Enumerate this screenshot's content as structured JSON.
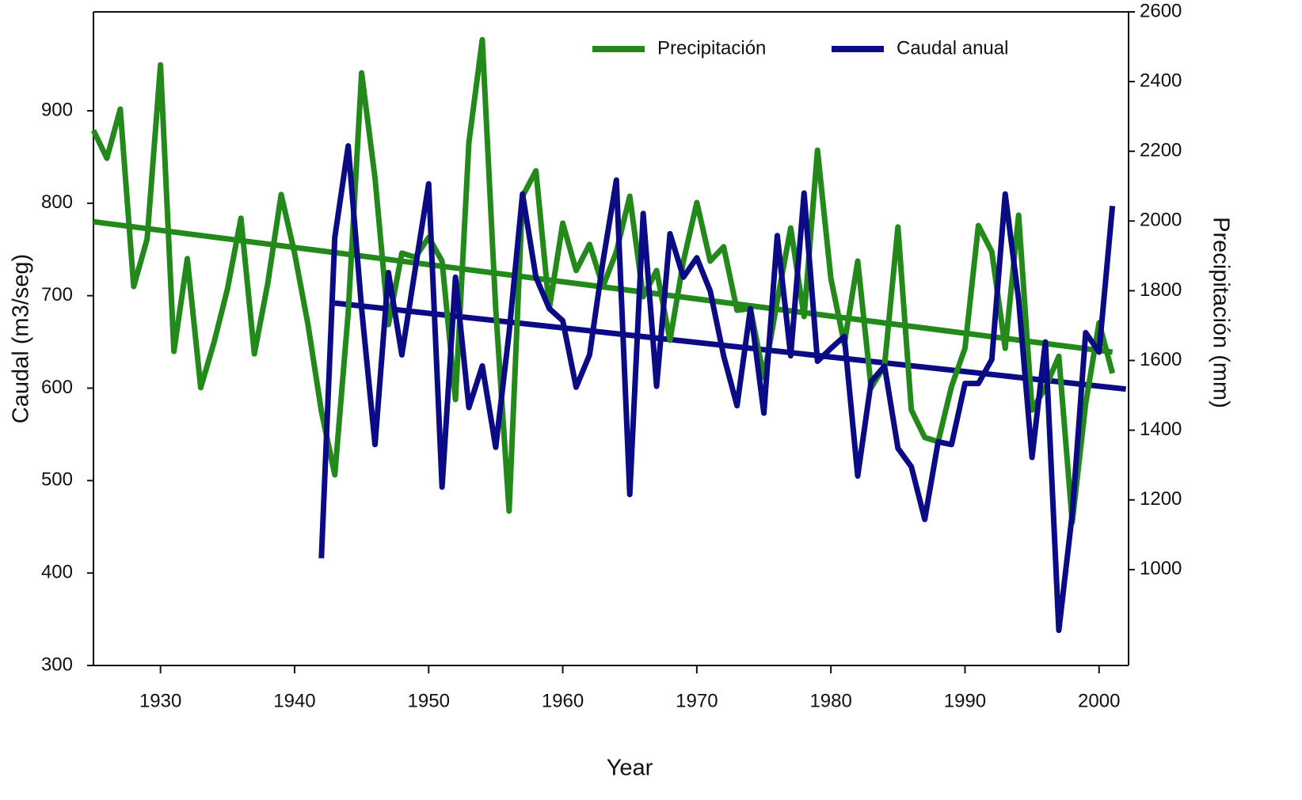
{
  "chart_data": {
    "type": "line",
    "x_label": "Year",
    "y_label": "Caudal  (m3/seg)",
    "y2_label": "Precipitación (mm)",
    "legend": "top-right",
    "xlim": [
      1925,
      2002.2
    ],
    "xticks": [
      1930,
      1940,
      1950,
      1960,
      1970,
      1980,
      1990,
      2000
    ],
    "ylim": [
      300,
      1007
    ],
    "yticks": [
      300,
      400,
      500,
      600,
      700,
      800,
      900
    ],
    "y2lim": [
      725,
      2600
    ],
    "y2ticks": [
      1000,
      1200,
      1400,
      1600,
      1800,
      2000,
      2200,
      2400,
      2600
    ],
    "series": [
      {
        "name": "Precipitación",
        "color": "#23891b",
        "axis": "y2",
        "x": [
          1925,
          1926,
          1927,
          1928,
          1929,
          1930,
          1931,
          1932,
          1933,
          1934,
          1935,
          1936,
          1937,
          1938,
          1939,
          1940,
          1941,
          1942,
          1943,
          1944,
          1945,
          1946,
          1947,
          1948,
          1949,
          1950,
          1951,
          1952,
          1953,
          1954,
          1955,
          1956,
          1957,
          1958,
          1959,
          1960,
          1961,
          1962,
          1963,
          1964,
          1965,
          1966,
          1967,
          1968,
          1969,
          1970,
          1971,
          1972,
          1973,
          1974,
          1975,
          1976,
          1977,
          1978,
          1979,
          1980,
          1981,
          1982,
          1983,
          1984,
          1985,
          1986,
          1987,
          1988,
          1989,
          1990,
          1991,
          1992,
          1993,
          1994,
          1995,
          1996,
          1997,
          1998,
          1999,
          2000,
          2001
        ],
        "values": [
          2260,
          2180,
          2321,
          1812,
          1948,
          2448,
          1626,
          1892,
          1522,
          1653,
          1806,
          2008,
          1619,
          1821,
          2076,
          1908,
          1703,
          1454,
          1272,
          1737,
          2425,
          2123,
          1703,
          1908,
          1896,
          1953,
          1885,
          1488,
          2225,
          2520,
          1749,
          1168,
          2071,
          2144,
          1749,
          1994,
          1858,
          1933,
          1812,
          1912,
          2071,
          1783,
          1858,
          1658,
          1885,
          2053,
          1885,
          1926,
          1744,
          1749,
          1551,
          1771,
          1980,
          1726,
          2203,
          1835,
          1647,
          1885,
          1522,
          1585,
          1983,
          1458,
          1379,
          1367,
          1526,
          1635,
          1987,
          1912,
          1635,
          2017,
          1458,
          1522,
          1612,
          1136,
          1476,
          1708,
          1563
        ]
      },
      {
        "name": "Caudal anual",
        "color": "#0b0b85",
        "axis": "y",
        "x": [
          1942,
          1943,
          1944,
          1945,
          1946,
          1947,
          1948,
          1949,
          1950,
          1951,
          1952,
          1953,
          1954,
          1955,
          1956,
          1957,
          1958,
          1959,
          1960,
          1961,
          1962,
          1963,
          1964,
          1965,
          1966,
          1967,
          1968,
          1969,
          1970,
          1971,
          1972,
          1973,
          1974,
          1975,
          1976,
          1977,
          1978,
          1979,
          1980,
          1981,
          1982,
          1983,
          1984,
          1985,
          1986,
          1987,
          1988,
          1989,
          1990,
          1991,
          1992,
          1993,
          1994,
          1995,
          1996,
          1997,
          1998,
          1999,
          2000,
          2001
        ],
        "values": [
          416,
          763,
          862,
          686,
          539,
          725,
          636,
          729,
          821,
          493,
          720,
          579,
          624,
          536,
          660,
          810,
          720,
          686,
          673,
          601,
          636,
          737,
          825,
          485,
          789,
          602,
          767,
          720,
          741,
          705,
          635,
          581,
          686,
          573,
          765,
          635,
          811,
          629,
          643,
          656,
          505,
          607,
          624,
          535,
          515,
          458,
          542,
          539,
          605,
          605,
          631,
          810,
          696,
          525,
          650,
          338,
          464,
          660,
          639,
          797
        ]
      }
    ],
    "trendlines": [
      {
        "color": "#23891b",
        "axis": "y2",
        "x": [
          1925,
          2001
        ],
        "values": [
          1998,
          1624
        ]
      },
      {
        "color": "#0b0b85",
        "axis": "y",
        "x": [
          1943,
          2002
        ],
        "values": [
          692,
          599
        ]
      }
    ]
  }
}
